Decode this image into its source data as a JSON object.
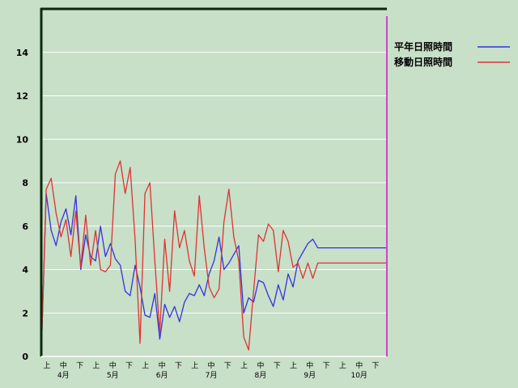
{
  "chart_data": {
    "type": "line",
    "title": "",
    "xlabel": "",
    "ylabel": "",
    "ylim": [
      0,
      16
    ],
    "yticks": [
      0,
      2,
      4,
      6,
      8,
      10,
      12,
      14
    ],
    "grid": true,
    "legend_position": "top-right",
    "period_ticks": [
      "上",
      "中",
      "下",
      "上",
      "中",
      "下",
      "上",
      "中",
      "下",
      "上",
      "中",
      "下",
      "上",
      "中",
      "下",
      "上",
      "中",
      "下",
      "上",
      "中",
      "下"
    ],
    "month_labels": [
      "4月",
      "5月",
      "6月",
      "7月",
      "8月",
      "9月",
      "10月"
    ],
    "x": [
      0,
      3,
      6,
      9,
      12,
      15,
      18,
      21,
      24,
      27,
      30,
      33,
      36,
      39,
      42,
      45,
      48,
      51,
      54,
      57,
      60,
      63,
      66,
      69,
      72,
      75,
      78,
      81,
      84,
      87,
      90,
      93,
      96,
      99,
      102,
      105,
      108,
      111,
      114,
      117,
      120,
      123,
      126,
      129,
      132,
      135,
      138,
      141,
      144,
      147,
      150,
      153,
      156,
      159,
      162,
      165,
      168,
      171,
      174,
      177,
      180,
      183,
      186,
      189,
      192,
      195,
      198,
      201,
      204,
      207,
      210
    ],
    "series": [
      {
        "name": "平年日照時間",
        "color": "#3333dd",
        "values": [
          0.1,
          7.5,
          5.8,
          5.1,
          6.2,
          6.8,
          5.6,
          7.4,
          4.0,
          5.6,
          4.6,
          4.4,
          6.0,
          4.6,
          5.2,
          4.5,
          4.2,
          3.0,
          2.8,
          4.2,
          3.2,
          1.9,
          1.8,
          2.9,
          0.8,
          2.4,
          1.8,
          2.3,
          1.6,
          2.5,
          2.9,
          2.8,
          3.3,
          2.8,
          3.8,
          4.4,
          5.5,
          4.0,
          4.3,
          4.7,
          5.1,
          2.0,
          2.7,
          2.5,
          3.5,
          3.4,
          2.8,
          2.3,
          3.3,
          2.6,
          3.8,
          3.2,
          4.4,
          4.8,
          5.2,
          5.4,
          5.0,
          5.0,
          5.0,
          5.0,
          5.0,
          5.0,
          5.0,
          5.0,
          5.0,
          5.0,
          5.0,
          5.0,
          5.0,
          5.0,
          5.0
        ]
      },
      {
        "name": "移動日照時間",
        "color": "#dd3333",
        "values": [
          0.1,
          7.7,
          8.2,
          6.6,
          5.5,
          6.3,
          4.6,
          6.7,
          4.1,
          6.5,
          4.2,
          5.8,
          4.0,
          3.9,
          4.2,
          8.4,
          9.0,
          7.5,
          8.7,
          5.4,
          0.6,
          7.5,
          8.0,
          4.4,
          1.1,
          5.4,
          3.0,
          6.7,
          5.0,
          5.8,
          4.4,
          3.7,
          7.4,
          5.0,
          3.2,
          2.7,
          3.1,
          6.2,
          7.7,
          5.5,
          4.4,
          0.9,
          0.3,
          3.0,
          5.6,
          5.3,
          6.1,
          5.8,
          3.9,
          5.8,
          5.3,
          4.1,
          4.3,
          3.6,
          4.3,
          3.6,
          4.3,
          4.3,
          4.3,
          4.3,
          4.3,
          4.3,
          4.3,
          4.3,
          4.3,
          4.3,
          4.3,
          4.3,
          4.3,
          4.3,
          4.3
        ]
      }
    ]
  }
}
